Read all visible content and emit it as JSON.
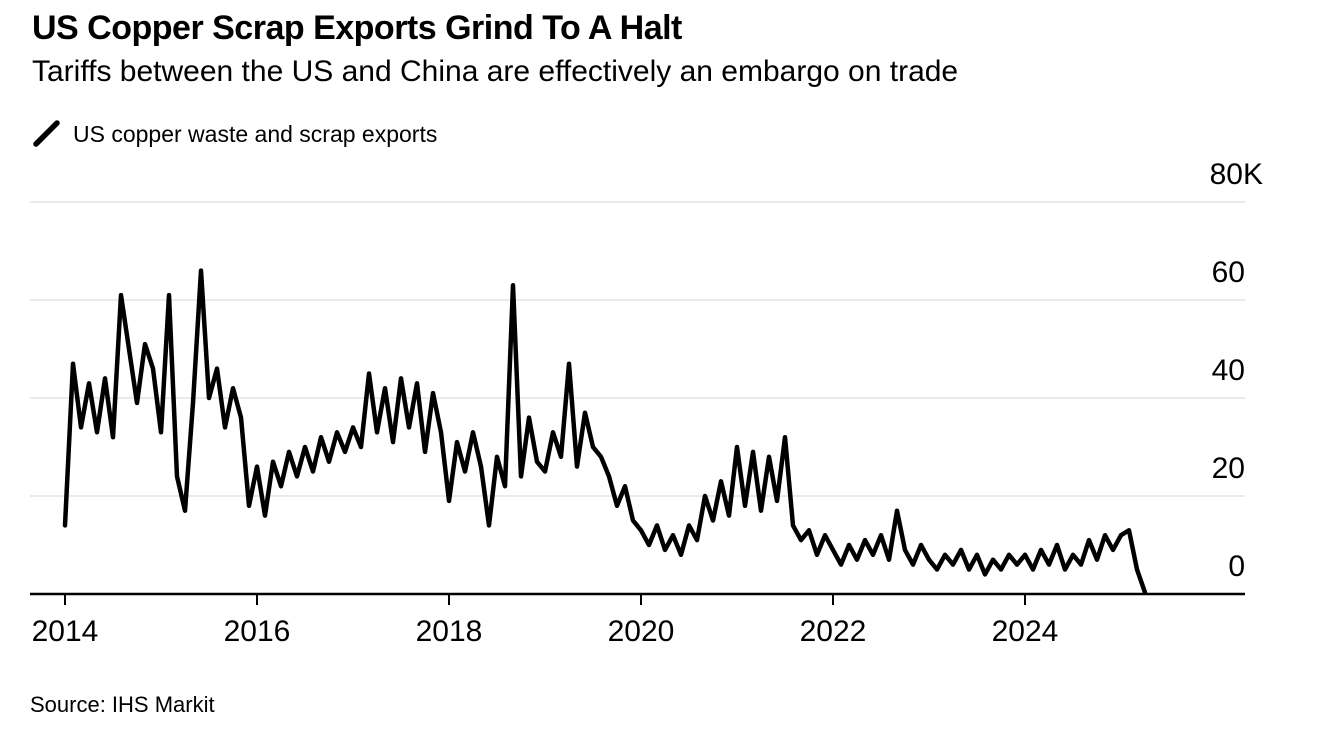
{
  "header": {
    "title": "US Copper Scrap Exports Grind To A Halt",
    "subtitle": "Tariffs between the US and China are effectively an embargo on trade"
  },
  "legend": {
    "label": "US copper waste and scrap exports",
    "marker": "diagonal-line",
    "marker_color": "#000000"
  },
  "footer": {
    "source": "Source: IHS Markit"
  },
  "colors": {
    "background": "#ffffff",
    "text": "#000000",
    "line": "#000000",
    "gridline": "#e3e3e3",
    "axis": "#000000"
  },
  "chart_data": {
    "type": "line",
    "title": "US Copper Scrap Exports Grind To A Halt",
    "subtitle": "Tariffs between the US and China are effectively an embargo on trade",
    "series_name": "US copper waste and scrap exports",
    "frequency": "monthly",
    "x_start": "2014-01",
    "x_end": "2025-04",
    "values_unit": "thousands (K)",
    "values_k": [
      14,
      47,
      34,
      43,
      33,
      44,
      32,
      61,
      50,
      39,
      51,
      46,
      33,
      61,
      24,
      17,
      39,
      66,
      40,
      46,
      34,
      42,
      36,
      18,
      26,
      16,
      27,
      22,
      29,
      24,
      30,
      25,
      32,
      27,
      33,
      29,
      34,
      30,
      45,
      33,
      42,
      31,
      44,
      34,
      43,
      29,
      41,
      33,
      19,
      31,
      25,
      33,
      26,
      14,
      28,
      22,
      63,
      24,
      36,
      27,
      25,
      33,
      28,
      47,
      26,
      37,
      30,
      28,
      24,
      18,
      22,
      15,
      13,
      10,
      14,
      9,
      12,
      8,
      14,
      11,
      20,
      15,
      23,
      16,
      30,
      18,
      29,
      17,
      28,
      19,
      32,
      14,
      11,
      13,
      8,
      12,
      9,
      6,
      10,
      7,
      11,
      8,
      12,
      7,
      17,
      9,
      6,
      10,
      7,
      5,
      8,
      6,
      9,
      5,
      8,
      4,
      7,
      5,
      8,
      6,
      8,
      5,
      9,
      6,
      10,
      5,
      8,
      6,
      11,
      7,
      12,
      9,
      12,
      13,
      5,
      0.3
    ],
    "ylim_k": [
      0,
      80
    ],
    "y_tick_values_k": [
      80,
      60,
      40,
      20,
      0
    ],
    "y_tick_labels": [
      "80K",
      "60",
      "40",
      "20",
      "0"
    ],
    "x_tick_years": [
      2014,
      2016,
      2018,
      2020,
      2022,
      2024
    ],
    "x_tick_labels": [
      "2014",
      "2016",
      "2018",
      "2020",
      "2022",
      "2024"
    ],
    "grid": "horizontal",
    "legend_position": "top-left",
    "axis_label_position": "right",
    "line_color": "#000000",
    "notable_points_k": {
      "2014-08": 61,
      "2015-02": 61,
      "2015-06": 66,
      "2018-09": 63,
      "2019-04": 47,
      "2021-07": 32,
      "2022-09": 17,
      "2025-04": 0.3
    }
  }
}
